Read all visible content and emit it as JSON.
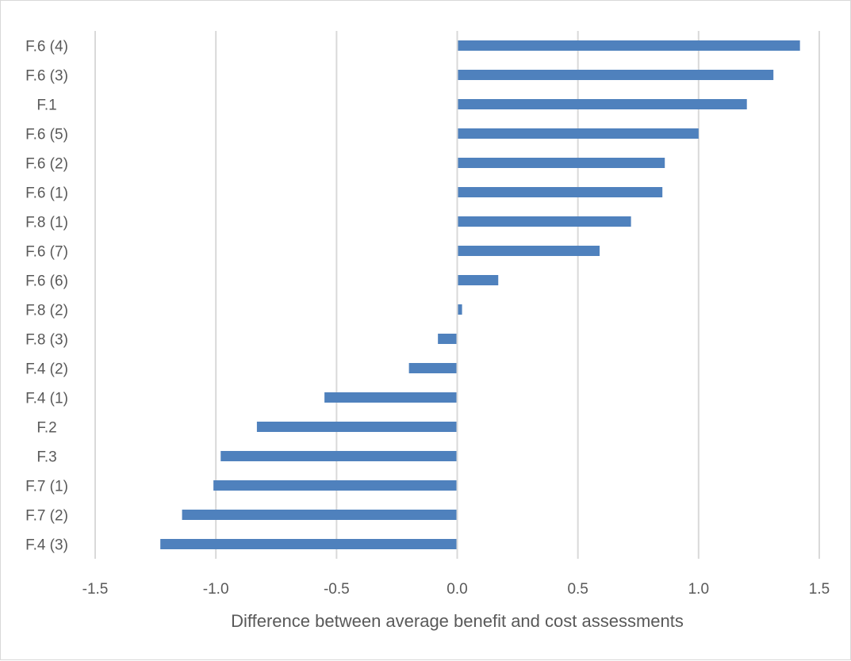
{
  "chart_data": {
    "type": "bar",
    "orientation": "horizontal",
    "title": "",
    "xlabel": "Difference between average benefit and cost assessments",
    "ylabel": "",
    "xlim": [
      -1.5,
      1.5
    ],
    "xticks": [
      -1.5,
      -1.0,
      -0.5,
      0.0,
      0.5,
      1.0,
      1.5
    ],
    "xtick_labels": [
      "-1.5",
      "-1.0",
      "-0.5",
      "0.0",
      "0.5",
      "1.0",
      "1.5"
    ],
    "grid": "vertical",
    "legend": "none",
    "bar_color": "#4f81bd",
    "grid_color": "#d9d9d9",
    "categories": [
      "F.6 (4)",
      "F.6 (3)",
      "F.1",
      "F.6 (5)",
      "F.6 (2)",
      "F.6 (1)",
      "F.8 (1)",
      "F.6 (7)",
      "F.6 (6)",
      "F.8 (2)",
      "F.8 (3)",
      "F.4 (2)",
      "F.4 (1)",
      "F.2",
      "F.3",
      "F.7 (1)",
      "F.7 (2)",
      "F.4 (3)"
    ],
    "values": [
      1.42,
      1.31,
      1.2,
      1.0,
      0.86,
      0.85,
      0.72,
      0.59,
      0.17,
      0.02,
      -0.08,
      -0.2,
      -0.55,
      -0.83,
      -0.98,
      -1.01,
      -1.14,
      -1.23
    ]
  }
}
